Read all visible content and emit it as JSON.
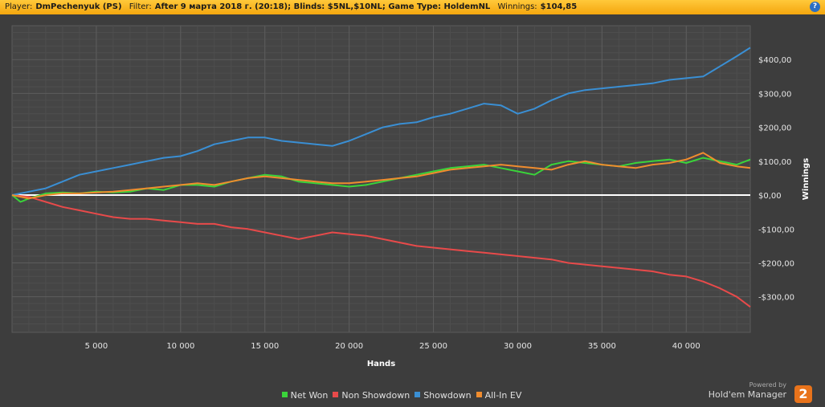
{
  "header": {
    "player_label": "Player:",
    "player_value": "DmPechenyuk (PS)",
    "filter_label": "Filter:",
    "filter_value": "After 9 марта 2018 г. (20:18); Blinds: $5NL,$10NL; Game Type: HoldemNL",
    "winnings_label": "Winnings:",
    "winnings_value": "$104,85",
    "help_icon": "question-icon"
  },
  "brand": {
    "powered_by": "Powered by",
    "name": "Hold'em Manager",
    "logo_text": "2"
  },
  "chart_data": {
    "type": "line",
    "xlabel": "Hands",
    "ylabel": "Winnings",
    "xlim": [
      0,
      43800
    ],
    "ylim": [
      -405,
      500
    ],
    "x_ticks": [
      5000,
      10000,
      15000,
      20000,
      25000,
      30000,
      35000,
      40000
    ],
    "x_tick_labels": [
      "5 000",
      "10 000",
      "15 000",
      "20 000",
      "25 000",
      "30 000",
      "35 000",
      "40 000"
    ],
    "y_ticks": [
      400,
      300,
      200,
      100,
      0,
      -100,
      -200,
      -300
    ],
    "y_tick_labels": [
      "$400,00",
      "$300,00",
      "$200,00",
      "$100,00",
      "$0,00",
      "-$100,00",
      "-$200,00",
      "-$300,00"
    ],
    "grid": true,
    "legend_position": "bottom",
    "series": [
      {
        "name": "Net Won",
        "color": "#3ad43a",
        "x": [
          0,
          500,
          1000,
          2000,
          3000,
          4000,
          5000,
          6000,
          7000,
          8000,
          9000,
          10000,
          11000,
          12000,
          13000,
          14000,
          15000,
          16000,
          17000,
          18000,
          19000,
          20000,
          21000,
          22000,
          23000,
          24000,
          25000,
          26000,
          27000,
          28000,
          29000,
          30000,
          31000,
          32000,
          33000,
          34000,
          35000,
          36000,
          37000,
          38000,
          39000,
          40000,
          41000,
          42000,
          43000,
          43800
        ],
        "values": [
          0,
          -20,
          -10,
          5,
          8,
          5,
          10,
          8,
          10,
          20,
          15,
          30,
          30,
          25,
          40,
          50,
          60,
          55,
          40,
          35,
          30,
          25,
          30,
          40,
          50,
          60,
          70,
          80,
          85,
          90,
          80,
          70,
          60,
          90,
          100,
          95,
          90,
          85,
          95,
          100,
          105,
          95,
          110,
          100,
          90,
          105
        ]
      },
      {
        "name": "Non Showdown",
        "color": "#e84a4a",
        "x": [
          0,
          1000,
          2000,
          3000,
          4000,
          5000,
          6000,
          7000,
          8000,
          9000,
          10000,
          11000,
          12000,
          13000,
          14000,
          15000,
          16000,
          17000,
          18000,
          19000,
          20000,
          21000,
          22000,
          23000,
          24000,
          25000,
          26000,
          27000,
          28000,
          29000,
          30000,
          31000,
          32000,
          33000,
          34000,
          35000,
          36000,
          37000,
          38000,
          39000,
          40000,
          41000,
          42000,
          43000,
          43800
        ],
        "values": [
          0,
          -5,
          -20,
          -35,
          -45,
          -55,
          -65,
          -70,
          -70,
          -75,
          -80,
          -85,
          -85,
          -95,
          -100,
          -110,
          -120,
          -130,
          -120,
          -110,
          -115,
          -120,
          -130,
          -140,
          -150,
          -155,
          -160,
          -165,
          -170,
          -175,
          -180,
          -185,
          -190,
          -200,
          -205,
          -210,
          -215,
          -220,
          -225,
          -235,
          -240,
          -255,
          -275,
          -300,
          -330
        ]
      },
      {
        "name": "Showdown",
        "color": "#3a8fd4",
        "x": [
          0,
          1000,
          2000,
          3000,
          4000,
          5000,
          6000,
          7000,
          8000,
          9000,
          10000,
          11000,
          12000,
          13000,
          14000,
          15000,
          16000,
          17000,
          18000,
          19000,
          20000,
          21000,
          22000,
          23000,
          24000,
          25000,
          26000,
          27000,
          28000,
          29000,
          30000,
          31000,
          32000,
          33000,
          34000,
          35000,
          36000,
          37000,
          38000,
          39000,
          40000,
          41000,
          42000,
          43000,
          43800
        ],
        "values": [
          0,
          10,
          20,
          40,
          60,
          70,
          80,
          90,
          100,
          110,
          115,
          130,
          150,
          160,
          170,
          170,
          160,
          155,
          150,
          145,
          160,
          180,
          200,
          210,
          215,
          230,
          240,
          255,
          270,
          265,
          240,
          255,
          280,
          300,
          310,
          315,
          320,
          325,
          330,
          340,
          345,
          350,
          380,
          410,
          435
        ]
      },
      {
        "name": "All-In EV",
        "color": "#f08c2e",
        "x": [
          0,
          1000,
          2000,
          3000,
          4000,
          5000,
          6000,
          7000,
          8000,
          9000,
          10000,
          11000,
          12000,
          13000,
          14000,
          15000,
          16000,
          17000,
          18000,
          19000,
          20000,
          21000,
          22000,
          23000,
          24000,
          25000,
          26000,
          27000,
          28000,
          29000,
          30000,
          31000,
          32000,
          33000,
          34000,
          35000,
          36000,
          37000,
          38000,
          39000,
          40000,
          41000,
          42000,
          43000,
          43800
        ],
        "values": [
          0,
          -10,
          0,
          5,
          5,
          8,
          10,
          15,
          20,
          25,
          30,
          35,
          30,
          40,
          50,
          55,
          50,
          45,
          40,
          35,
          35,
          40,
          45,
          50,
          55,
          65,
          75,
          80,
          85,
          90,
          85,
          80,
          75,
          90,
          100,
          90,
          85,
          80,
          90,
          95,
          105,
          125,
          95,
          85,
          80
        ]
      }
    ]
  }
}
